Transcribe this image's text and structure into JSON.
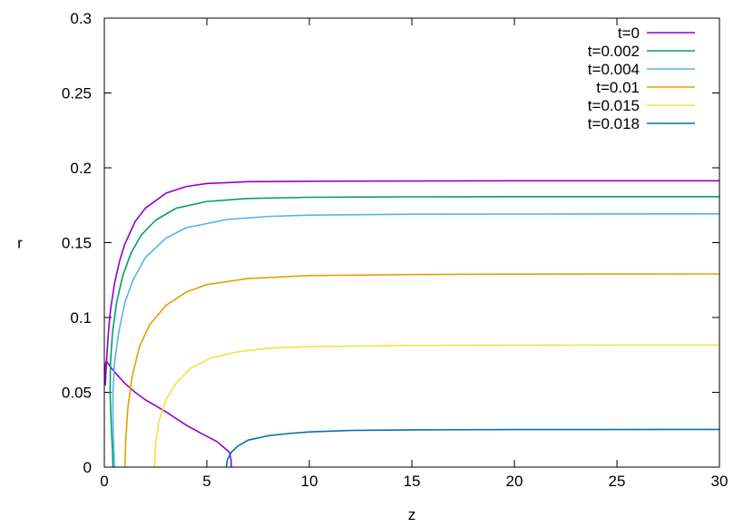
{
  "chart_data": {
    "type": "line",
    "title": "",
    "xlabel": "z",
    "ylabel": "r",
    "xlim": [
      0,
      30
    ],
    "ylim": [
      0,
      0.3
    ],
    "xticks": [
      "0",
      "5",
      "10",
      "15",
      "20",
      "25",
      "30"
    ],
    "yticks": [
      "0",
      "0.05",
      "0.1",
      "0.15",
      "0.2",
      "0.25",
      "0.3"
    ],
    "grid": false,
    "legend_position": "top-right",
    "series": [
      {
        "name": "t=0",
        "color": "#9400d3",
        "points": [
          [
            6.2,
            0
          ],
          [
            6.18,
            0.005
          ],
          [
            6.1,
            0.01
          ],
          [
            5.5,
            0.017
          ],
          [
            4.8,
            0.022
          ],
          [
            4.0,
            0.028
          ],
          [
            3.0,
            0.037
          ],
          [
            2.0,
            0.045
          ],
          [
            1.5,
            0.05
          ],
          [
            1.0,
            0.056
          ],
          [
            0.6,
            0.062
          ],
          [
            0.3,
            0.067
          ],
          [
            0.1,
            0.071
          ],
          [
            0.05,
            0.068
          ],
          [
            0.04,
            0.062
          ],
          [
            0.05,
            0.055
          ],
          [
            0.1,
            0.07
          ],
          [
            0.2,
            0.09
          ],
          [
            0.3,
            0.105
          ],
          [
            0.5,
            0.123
          ],
          [
            0.75,
            0.138
          ],
          [
            1.0,
            0.149
          ],
          [
            1.5,
            0.164
          ],
          [
            2,
            0.173
          ],
          [
            3,
            0.183
          ],
          [
            4,
            0.1875
          ],
          [
            5,
            0.1895
          ],
          [
            7,
            0.1907
          ],
          [
            10,
            0.191
          ],
          [
            15,
            0.1912
          ],
          [
            20,
            0.1913
          ],
          [
            25,
            0.1913
          ],
          [
            30,
            0.1913
          ]
        ]
      },
      {
        "name": "t=0.002",
        "color": "#009e73",
        "points": [
          [
            0.42,
            0
          ],
          [
            0.4,
            0.01
          ],
          [
            0.33,
            0.03
          ],
          [
            0.28,
            0.05
          ],
          [
            0.3,
            0.07
          ],
          [
            0.4,
            0.09
          ],
          [
            0.6,
            0.11
          ],
          [
            0.9,
            0.128
          ],
          [
            1.3,
            0.143
          ],
          [
            1.8,
            0.155
          ],
          [
            2.5,
            0.165
          ],
          [
            3.5,
            0.173
          ],
          [
            5,
            0.1775
          ],
          [
            7,
            0.1795
          ],
          [
            10,
            0.1803
          ],
          [
            15,
            0.1806
          ],
          [
            20,
            0.1807
          ],
          [
            30,
            0.1807
          ]
        ]
      },
      {
        "name": "t=0.004",
        "color": "#56b4e9",
        "points": [
          [
            0.5,
            0
          ],
          [
            0.47,
            0.01
          ],
          [
            0.42,
            0.03
          ],
          [
            0.42,
            0.05
          ],
          [
            0.5,
            0.07
          ],
          [
            0.7,
            0.09
          ],
          [
            1.0,
            0.11
          ],
          [
            1.4,
            0.125
          ],
          [
            2,
            0.14
          ],
          [
            3,
            0.153
          ],
          [
            4,
            0.16
          ],
          [
            6,
            0.1655
          ],
          [
            8,
            0.1675
          ],
          [
            10,
            0.1684
          ],
          [
            15,
            0.169
          ],
          [
            20,
            0.1691
          ],
          [
            30,
            0.1692
          ]
        ]
      },
      {
        "name": "t=0.01",
        "color": "#e69f00",
        "points": [
          [
            1.0,
            0
          ],
          [
            1.05,
            0.02
          ],
          [
            1.15,
            0.04
          ],
          [
            1.35,
            0.06
          ],
          [
            1.7,
            0.08
          ],
          [
            2.2,
            0.095
          ],
          [
            3,
            0.108
          ],
          [
            4,
            0.117
          ],
          [
            5,
            0.122
          ],
          [
            7,
            0.126
          ],
          [
            10,
            0.128
          ],
          [
            15,
            0.1287
          ],
          [
            20,
            0.129
          ],
          [
            30,
            0.1291
          ]
        ]
      },
      {
        "name": "t=0.015",
        "color": "#f0e442",
        "points": [
          [
            2.45,
            0
          ],
          [
            2.5,
            0.015
          ],
          [
            2.65,
            0.03
          ],
          [
            3.0,
            0.045
          ],
          [
            3.5,
            0.056
          ],
          [
            4.2,
            0.066
          ],
          [
            5.2,
            0.073
          ],
          [
            6.5,
            0.077
          ],
          [
            8,
            0.0795
          ],
          [
            10,
            0.0805
          ],
          [
            15,
            0.0813
          ],
          [
            20,
            0.0815
          ],
          [
            30,
            0.0816
          ]
        ]
      },
      {
        "name": "t=0.018",
        "color": "#0072b2",
        "points": [
          [
            5.95,
            0
          ],
          [
            6.0,
            0.005
          ],
          [
            6.2,
            0.01
          ],
          [
            6.5,
            0.014
          ],
          [
            7,
            0.018
          ],
          [
            8,
            0.021
          ],
          [
            9,
            0.0225
          ],
          [
            10,
            0.0235
          ],
          [
            12,
            0.0245
          ],
          [
            15,
            0.0249
          ],
          [
            20,
            0.0251
          ],
          [
            30,
            0.0252
          ]
        ]
      }
    ]
  }
}
